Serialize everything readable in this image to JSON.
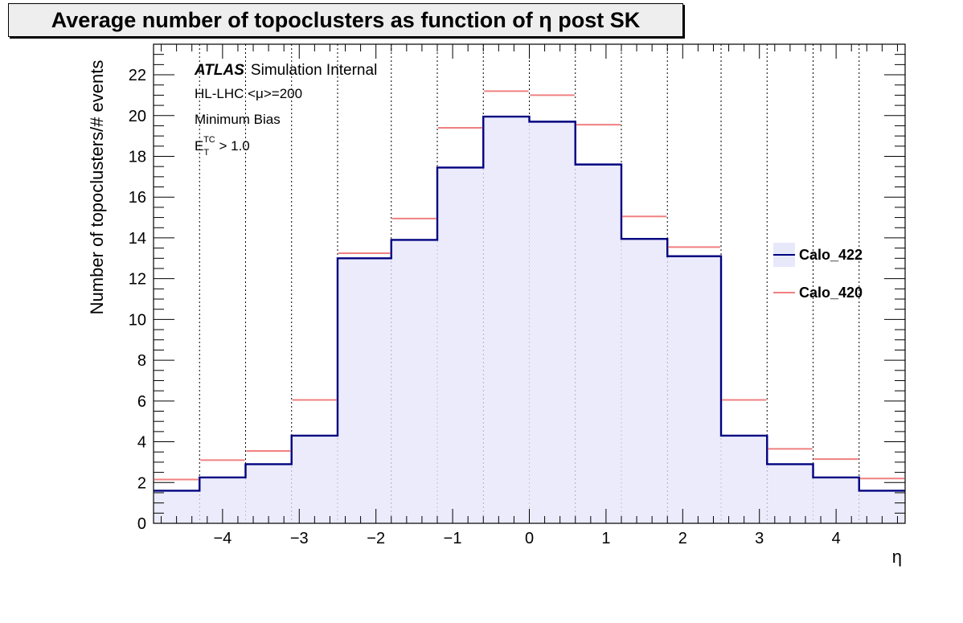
{
  "chart_data": {
    "type": "step-histogram",
    "title": "Average number of topoclusters as function of η post SK",
    "xlabel": "η",
    "ylabel": "Number of topoclusters/# events",
    "xlim": [
      -4.9,
      4.9
    ],
    "ylim": [
      0,
      23.5
    ],
    "x_ticks": [
      -4,
      -3,
      -2,
      -1,
      0,
      1,
      2,
      3,
      4
    ],
    "x_tick_labels": [
      "−4",
      "−3",
      "−2",
      "−1",
      "0",
      "1",
      "2",
      "3",
      "4"
    ],
    "y_ticks": [
      0,
      2,
      4,
      6,
      8,
      10,
      12,
      14,
      16,
      18,
      20,
      22
    ],
    "y_tick_labels": [
      "0",
      "2",
      "4",
      "6",
      "8",
      "10",
      "12",
      "14",
      "16",
      "18",
      "20",
      "22"
    ],
    "bin_edges": [
      -4.9,
      -4.3,
      -3.7,
      -3.1,
      -2.5,
      -1.8,
      -1.2,
      -0.6,
      0,
      0.6,
      1.2,
      1.8,
      2.5,
      3.1,
      3.7,
      4.3,
      4.9
    ],
    "series": [
      {
        "name": "Calo_422",
        "style": "filled-step",
        "color": "#000080",
        "fill": "#e8e8fb",
        "values": [
          1.6,
          2.25,
          2.9,
          4.3,
          13.0,
          13.9,
          17.45,
          19.95,
          19.7,
          17.6,
          13.95,
          13.1,
          4.3,
          2.9,
          2.25,
          1.6
        ]
      },
      {
        "name": "Calo_420",
        "style": "horizontal-marks",
        "color": "#f08080",
        "values": [
          2.15,
          3.1,
          3.55,
          6.05,
          13.25,
          14.95,
          19.4,
          21.2,
          21.0,
          19.55,
          15.05,
          13.55,
          6.05,
          3.65,
          3.15,
          2.2
        ]
      }
    ],
    "vertical_dotted_lines_at": [
      -4.3,
      -3.7,
      -3.1,
      -2.5,
      -1.8,
      -1.2,
      -0.6,
      0,
      0.6,
      1.2,
      1.8,
      2.5,
      3.1,
      3.7,
      4.3
    ],
    "legend_position": "right",
    "annotations": {
      "atlas": "ATLAS",
      "atlas_suffix": "Simulation Internal",
      "line2": "HL-LHC <μ>=200",
      "line3": "Minimum Bias",
      "line4_base": "E",
      "line4_sub": "T",
      "line4_sup": "TC",
      "line4_rest": " > 1.0"
    }
  }
}
